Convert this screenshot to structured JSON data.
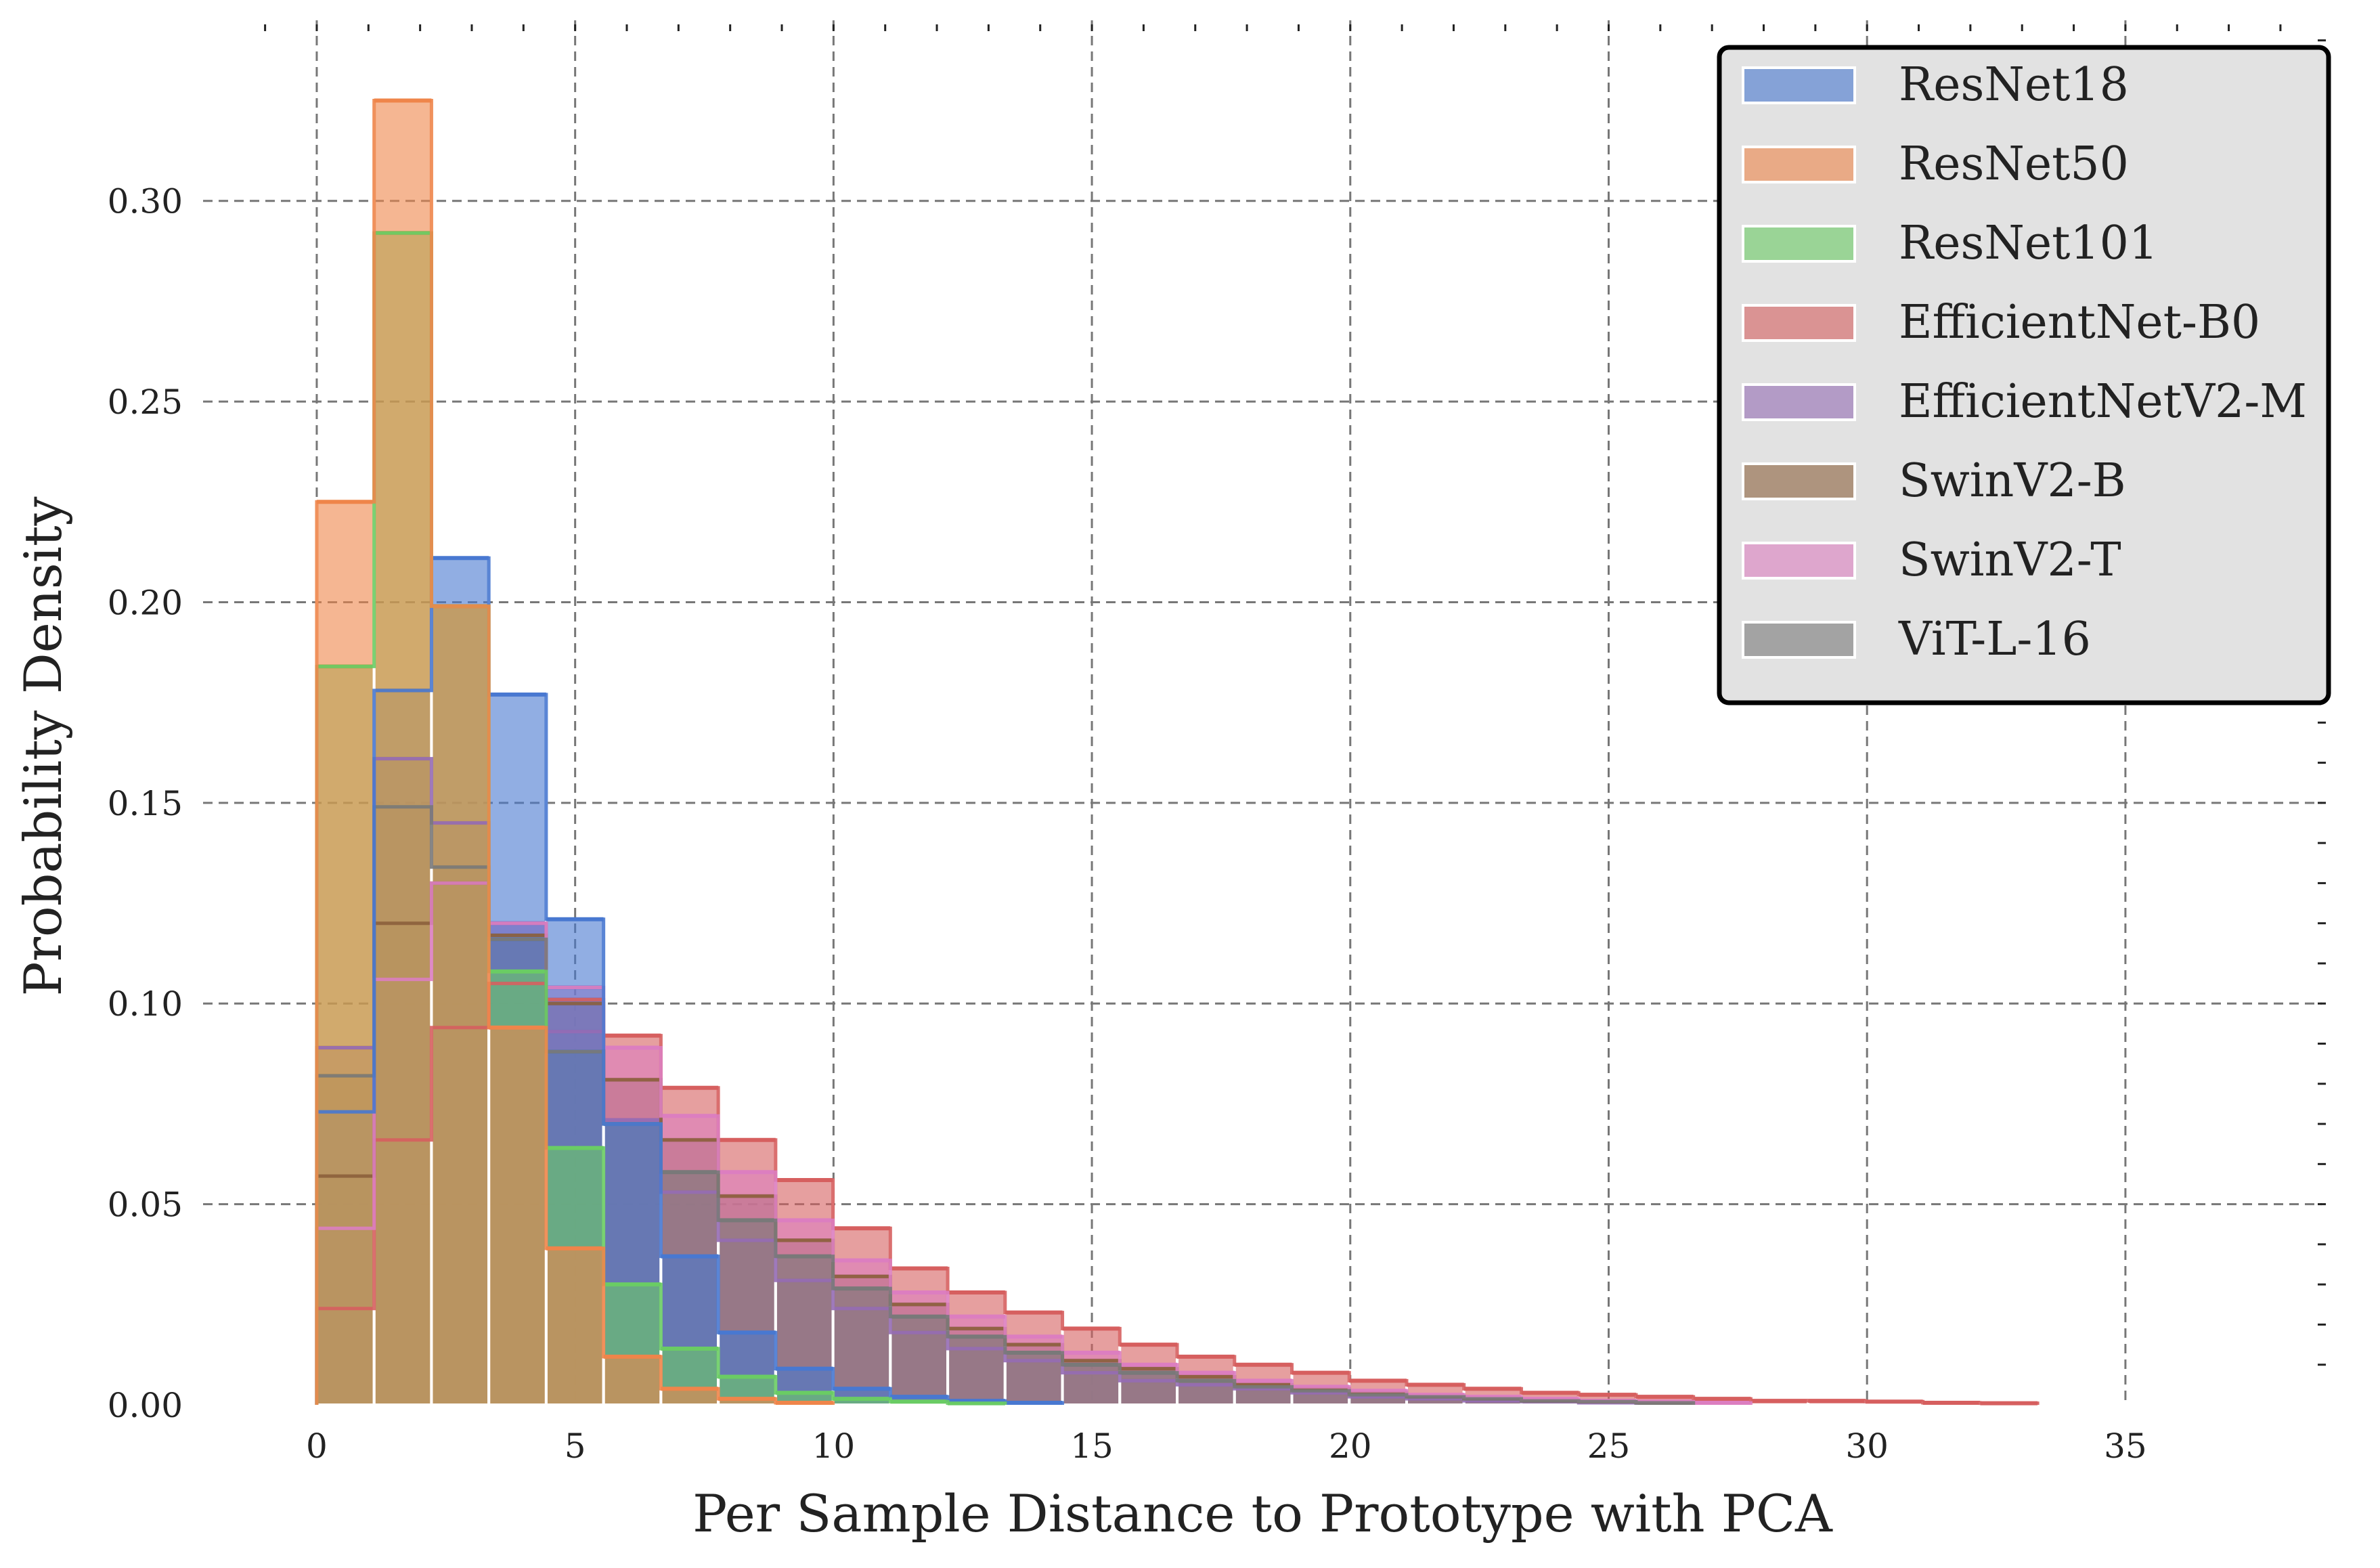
{
  "chart_data": {
    "type": "histogram",
    "title": "",
    "xlabel": "Per Sample Distance to Prototype with PCA",
    "ylabel": "Probability Density",
    "xlim": [
      -2.2,
      38.8
    ],
    "ylim": [
      0,
      0.345
    ],
    "x_ticks": [
      0,
      5,
      10,
      15,
      20,
      25,
      30,
      35
    ],
    "y_ticks": [
      0.0,
      0.05,
      0.1,
      0.15,
      0.2,
      0.25,
      0.3
    ],
    "y_tick_labels": [
      "0.00",
      "0.05",
      "0.10",
      "0.15",
      "0.20",
      "0.25",
      "0.30"
    ],
    "bin_width": 1.11,
    "bin_start": 0,
    "grid": true,
    "legend_position": "top-right",
    "series": [
      {
        "name": "EfficientNet-B0",
        "color": "#d65f5f",
        "densities": [
          0.024,
          0.066,
          0.094,
          0.105,
          0.101,
          0.092,
          0.079,
          0.066,
          0.056,
          0.044,
          0.034,
          0.028,
          0.023,
          0.019,
          0.015,
          0.012,
          0.01,
          0.008,
          0.006,
          0.005,
          0.004,
          0.003,
          0.0025,
          0.002,
          0.0015,
          0.001,
          0.001,
          0.0008,
          0.0005,
          0.0004
        ]
      },
      {
        "name": "EfficientNetV2-M",
        "color": "#956cb4",
        "densities": [
          0.089,
          0.161,
          0.145,
          0.12,
          0.093,
          0.071,
          0.053,
          0.041,
          0.031,
          0.024,
          0.018,
          0.014,
          0.011,
          0.008,
          0.006,
          0.005,
          0.004,
          0.003,
          0.002,
          0.0015,
          0.001,
          0.0008,
          0.0005
        ]
      },
      {
        "name": "SwinV2-B",
        "color": "#8c613c",
        "densities": [
          0.057,
          0.12,
          0.13,
          0.117,
          0.1,
          0.081,
          0.066,
          0.052,
          0.041,
          0.032,
          0.025,
          0.019,
          0.015,
          0.011,
          0.009,
          0.007,
          0.005,
          0.004,
          0.003,
          0.002,
          0.0015,
          0.001,
          0.0008,
          0.0005
        ]
      },
      {
        "name": "SwinV2-T",
        "color": "#dc7ec0",
        "densities": [
          0.044,
          0.106,
          0.13,
          0.12,
          0.104,
          0.089,
          0.072,
          0.058,
          0.046,
          0.036,
          0.028,
          0.022,
          0.017,
          0.013,
          0.01,
          0.008,
          0.006,
          0.0045,
          0.0035,
          0.0025,
          0.002,
          0.0015,
          0.001,
          0.0008,
          0.0005
        ]
      },
      {
        "name": "ViT-L-16",
        "color": "#797979",
        "densities": [
          0.082,
          0.149,
          0.134,
          0.116,
          0.088,
          0.07,
          0.058,
          0.046,
          0.037,
          0.029,
          0.022,
          0.017,
          0.013,
          0.01,
          0.008,
          0.006,
          0.0045,
          0.0035,
          0.0025,
          0.002,
          0.0015,
          0.001,
          0.0008,
          0.0005
        ]
      },
      {
        "name": "ResNet18",
        "color": "#4878d0",
        "densities": [
          0.073,
          0.178,
          0.211,
          0.177,
          0.121,
          0.07,
          0.037,
          0.018,
          0.009,
          0.004,
          0.002,
          0.001,
          0.0005
        ]
      },
      {
        "name": "ResNet101",
        "color": "#6acc64",
        "densities": [
          0.184,
          0.292,
          0.199,
          0.108,
          0.064,
          0.03,
          0.014,
          0.007,
          0.003,
          0.0015,
          0.0008,
          0.0004
        ]
      },
      {
        "name": "ResNet50",
        "color": "#ee854a",
        "densities": [
          0.225,
          0.325,
          0.199,
          0.094,
          0.039,
          0.012,
          0.004,
          0.0015,
          0.0005
        ]
      }
    ],
    "legend_order": [
      "ResNet18",
      "ResNet50",
      "ResNet101",
      "EfficientNet-B0",
      "EfficientNetV2-M",
      "SwinV2-B",
      "SwinV2-T",
      "ViT-L-16"
    ]
  }
}
